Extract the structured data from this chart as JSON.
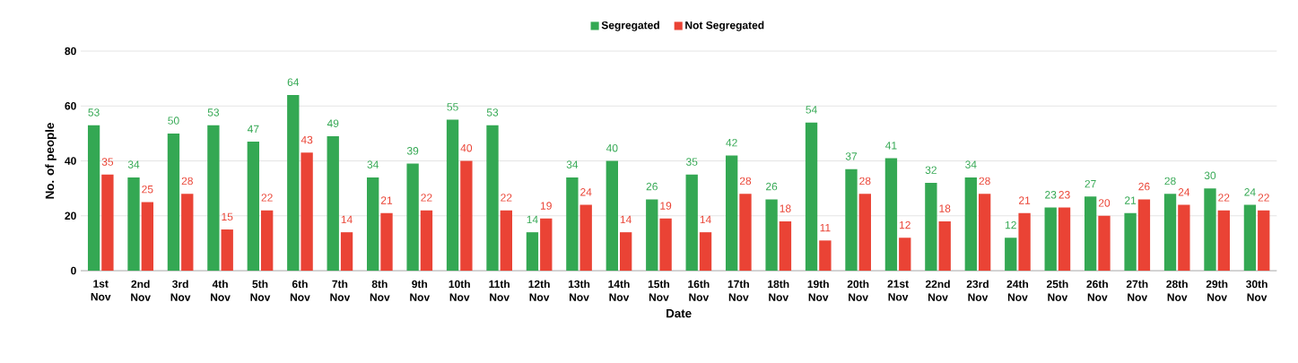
{
  "chart_data": {
    "type": "bar",
    "xlabel": "Date",
    "ylabel": "No. of people",
    "categories": [
      "1st Nov",
      "2nd Nov",
      "3rd Nov",
      "4th Nov",
      "5th Nov",
      "6th Nov",
      "7th Nov",
      "8th Nov",
      "9th Nov",
      "10th Nov",
      "11th Nov",
      "12th Nov",
      "13th Nov",
      "14th Nov",
      "15th Nov",
      "16th Nov",
      "17th Nov",
      "18th Nov",
      "19th Nov",
      "20th Nov",
      "21st Nov",
      "22nd Nov",
      "23rd Nov",
      "24th Nov",
      "25th Nov",
      "26th Nov",
      "27th Nov",
      "28th Nov",
      "29th Nov",
      "30th Nov"
    ],
    "series": [
      {
        "name": "Segregated",
        "color": "#34a853",
        "values": [
          53,
          34,
          50,
          53,
          47,
          64,
          49,
          34,
          39,
          55,
          53,
          14,
          34,
          40,
          26,
          35,
          42,
          26,
          54,
          37,
          41,
          32,
          34,
          12,
          23,
          27,
          21,
          28,
          30,
          24
        ]
      },
      {
        "name": "Not Segregated",
        "color": "#ea4335",
        "values": [
          35,
          25,
          28,
          15,
          22,
          43,
          14,
          21,
          22,
          40,
          22,
          19,
          24,
          14,
          19,
          14,
          28,
          18,
          11,
          28,
          12,
          18,
          28,
          21,
          23,
          20,
          26,
          24,
          22,
          22
        ]
      }
    ],
    "ylim": [
      0,
      80
    ],
    "yticks": [
      0,
      20,
      40,
      60,
      80
    ],
    "grid": "y",
    "legend": "top",
    "data_labels": true
  }
}
